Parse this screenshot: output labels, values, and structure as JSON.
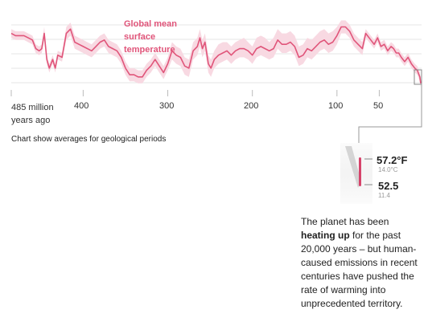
{
  "chart_data": {
    "type": "line",
    "series_label": "Global mean\nsurface\ntemperature",
    "x_unit": "million years ago",
    "x_ticks": [
      {
        "value": 485,
        "label": "485 million\nyears ago"
      },
      {
        "value": 400,
        "label": "400"
      },
      {
        "value": 300,
        "label": "300"
      },
      {
        "value": 200,
        "label": "200"
      },
      {
        "value": 100,
        "label": "100"
      },
      {
        "value": 50,
        "label": "50"
      }
    ],
    "x_range": [
      485,
      0
    ],
    "y_range": [
      6,
      40
    ],
    "grid": true,
    "x": [
      485,
      480,
      475,
      470,
      465,
      460,
      456,
      452,
      449,
      446,
      443,
      440,
      436,
      433,
      430,
      425,
      420,
      415,
      410,
      405,
      400,
      395,
      390,
      385,
      380,
      375,
      370,
      365,
      360,
      355,
      350,
      345,
      340,
      335,
      330,
      325,
      320,
      315,
      310,
      305,
      300,
      295,
      290,
      285,
      280,
      275,
      270,
      265,
      262,
      259,
      256,
      252,
      249,
      245,
      240,
      235,
      230,
      225,
      220,
      215,
      210,
      205,
      200,
      195,
      190,
      185,
      180,
      175,
      170,
      165,
      160,
      155,
      150,
      145,
      140,
      135,
      130,
      125,
      120,
      115,
      110,
      105,
      100,
      95,
      90,
      85,
      80,
      75,
      70,
      66,
      60,
      56,
      52,
      48,
      44,
      40,
      36,
      33,
      30,
      27,
      24,
      20,
      16,
      12,
      8,
      5,
      3,
      2,
      1
    ],
    "y": [
      32,
      31,
      31,
      31,
      30,
      29,
      25,
      24,
      25,
      32,
      20,
      16,
      20,
      16,
      22,
      21,
      32,
      34,
      28,
      27,
      26,
      25,
      24,
      26,
      28,
      29,
      26,
      25,
      24,
      21,
      16,
      13,
      13,
      12,
      12,
      15,
      17,
      20,
      17,
      14,
      18,
      24,
      22,
      21,
      17,
      16,
      24,
      26,
      30,
      25,
      28,
      18,
      16,
      20,
      22,
      23,
      24,
      22,
      24,
      25,
      25,
      24,
      22,
      25,
      26,
      25,
      24,
      25,
      29,
      27,
      27,
      28,
      26,
      21,
      22,
      25,
      24,
      26,
      28,
      29,
      27,
      28,
      31,
      35,
      35,
      33,
      29,
      27,
      25,
      32,
      29,
      27,
      30,
      26,
      27,
      24,
      26,
      25,
      23,
      23,
      21,
      19,
      21,
      18,
      16,
      15,
      13,
      12,
      9
    ],
    "band_upper": [
      34,
      33,
      33,
      33,
      32,
      31,
      27,
      26,
      27,
      35,
      22,
      18,
      22,
      18,
      24,
      23,
      35,
      37,
      31,
      30,
      29,
      28,
      27,
      29,
      31,
      32,
      29,
      28,
      27,
      24,
      19,
      16,
      16,
      15,
      15,
      18,
      20,
      23,
      20,
      17,
      21,
      28,
      26,
      25,
      21,
      20,
      28,
      30,
      34,
      29,
      32,
      22,
      20,
      24,
      27,
      28,
      28,
      26,
      28,
      29,
      30,
      28,
      26,
      30,
      31,
      30,
      28,
      30,
      34,
      32,
      32,
      33,
      31,
      26,
      27,
      30,
      29,
      31,
      33,
      34,
      32,
      33,
      35,
      38,
      38,
      36,
      32,
      30,
      28,
      34,
      31,
      29,
      32,
      28,
      29,
      26,
      28,
      27,
      25,
      25,
      23,
      21,
      23,
      20,
      18,
      17,
      15,
      14,
      11
    ],
    "band_lower": [
      30,
      29,
      29,
      29,
      28,
      27,
      23,
      22,
      23,
      29,
      18,
      14,
      18,
      14,
      20,
      19,
      29,
      31,
      25,
      24,
      23,
      22,
      21,
      23,
      25,
      26,
      23,
      22,
      21,
      18,
      13,
      10,
      10,
      9,
      9,
      12,
      14,
      17,
      14,
      11,
      15,
      20,
      18,
      17,
      13,
      12,
      20,
      22,
      26,
      21,
      24,
      14,
      12,
      16,
      18,
      19,
      20,
      18,
      20,
      21,
      21,
      20,
      18,
      21,
      22,
      21,
      20,
      21,
      25,
      23,
      23,
      24,
      22,
      17,
      18,
      21,
      20,
      22,
      24,
      25,
      23,
      24,
      27,
      32,
      32,
      30,
      26,
      24,
      22,
      30,
      27,
      25,
      28,
      24,
      25,
      22,
      24,
      23,
      21,
      21,
      19,
      17,
      19,
      16,
      14,
      13,
      11,
      10,
      7
    ]
  },
  "note": "Chart show averages for geological periods",
  "inset": {
    "top_value": "57.2°F",
    "top_sub": "14.0°C",
    "bottom_value": "52.5",
    "bottom_sub": "11.4"
  },
  "annotation": {
    "before": "The planet has been",
    "emphasis": "heating up",
    "after": "for the past 20,000 years – but human-caused emissions in recent centuries have pushed the rate of warming into unprecedented territory."
  },
  "colors": {
    "line": "#e0557a",
    "band": "#f8d9e2",
    "inset_bar": "#d6436b",
    "grid": "#e6e6e6",
    "connector": "#999999"
  }
}
